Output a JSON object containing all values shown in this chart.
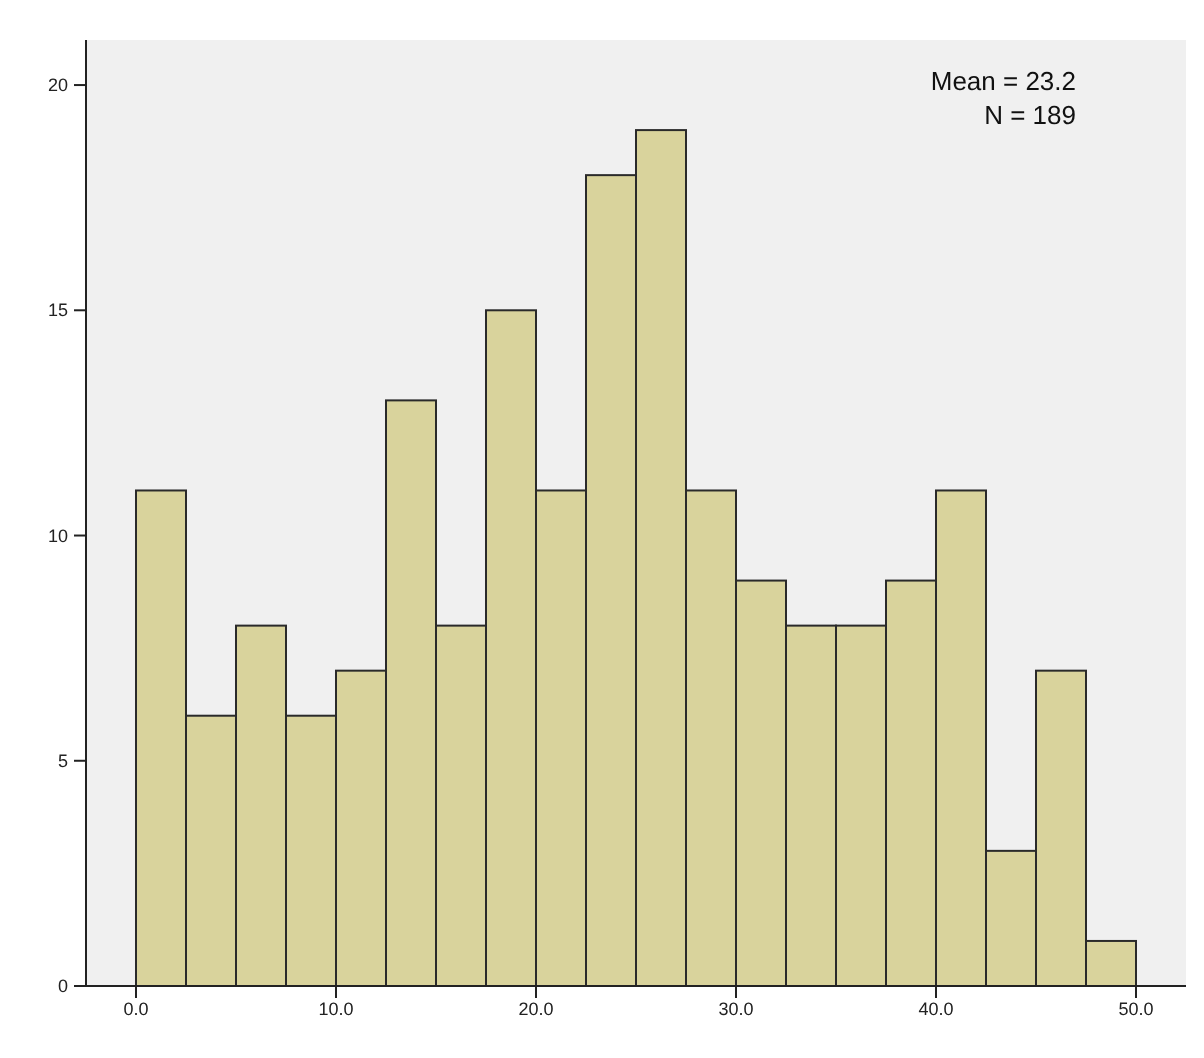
{
  "chart_data": {
    "type": "histogram",
    "bins": [
      0,
      2.5,
      5,
      7.5,
      10,
      12.5,
      15,
      17.5,
      20,
      22.5,
      25,
      27.5,
      30,
      32.5,
      35,
      37.5,
      40,
      42.5,
      45,
      47.5,
      50
    ],
    "values": [
      11,
      6,
      8,
      6,
      7,
      13,
      8,
      15,
      11,
      18,
      19,
      11,
      9,
      8,
      8,
      9,
      11,
      3,
      7,
      1
    ],
    "color": "#d9d39c",
    "xlim": [
      -2.5,
      52.5
    ],
    "xticks": [
      {
        "value": 0,
        "label": "0.0"
      },
      {
        "value": 10,
        "label": "10.0"
      },
      {
        "value": 20,
        "label": "20.0"
      },
      {
        "value": 30,
        "label": "30.0"
      },
      {
        "value": 40,
        "label": "40.0"
      },
      {
        "value": 50,
        "label": "50.0"
      }
    ],
    "ylim": [
      0,
      21
    ],
    "yticks": [
      0,
      5,
      10,
      15,
      20
    ],
    "annotations": [
      "Mean = 23.2",
      "N = 189"
    ]
  }
}
